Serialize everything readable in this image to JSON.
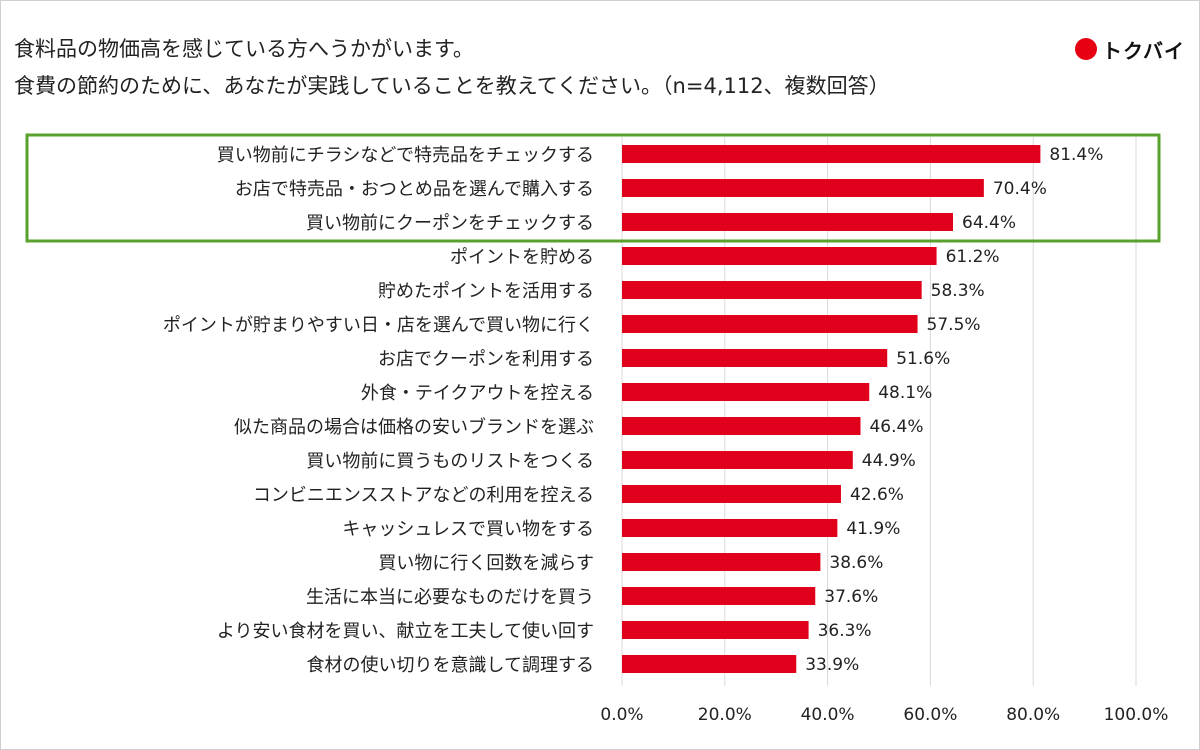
{
  "header": {
    "title_line1": "食料品の物価高を感じている方へうかがいます。",
    "title_line2": "食費の節約のために、あなたが実践していることを教えてください。（n=4,112、複数回答）"
  },
  "brand": {
    "name": "トクバイ",
    "dot_color": "#e60012"
  },
  "colors": {
    "bar": "#e0001b",
    "highlight_border": "#5aa02c",
    "grid": "#d9d9d9"
  },
  "chart_data": {
    "type": "bar",
    "orientation": "horizontal",
    "categories": [
      "買い物前にチラシなどで特売品をチェックする",
      "お店で特売品・おつとめ品を選んで購入する",
      "買い物前にクーポンをチェックする",
      "ポイントを貯める",
      "貯めたポイントを活用する",
      "ポイントが貯まりやすい日・店を選んで買い物に行く",
      "お店でクーポンを利用する",
      "外食・テイクアウトを控える",
      "似た商品の場合は価格の安いブランドを選ぶ",
      "買い物前に買うものリストをつくる",
      "コンビニエンスストアなどの利用を控える",
      "キャッシュレスで買い物をする",
      "買い物に行く回数を減らす",
      "生活に本当に必要なものだけを買う",
      "より安い食材を買い、献立を工夫して使い回す",
      "食材の使い切りを意識して調理する"
    ],
    "values": [
      81.4,
      70.4,
      64.4,
      61.2,
      58.3,
      57.5,
      51.6,
      48.1,
      46.4,
      44.9,
      42.6,
      41.9,
      38.6,
      37.6,
      36.3,
      33.9
    ],
    "value_labels": [
      "81.4%",
      "70.4%",
      "64.4%",
      "61.2%",
      "58.3%",
      "57.5%",
      "51.6%",
      "48.1%",
      "46.4%",
      "44.9%",
      "42.6%",
      "41.9%",
      "38.6%",
      "37.6%",
      "36.3%",
      "33.9%"
    ],
    "xlim": [
      0,
      100
    ],
    "xticks": [
      0,
      20,
      40,
      60,
      80,
      100
    ],
    "xtick_labels": [
      "0.0%",
      "20.0%",
      "40.0%",
      "60.0%",
      "80.0%",
      "100.0%"
    ],
    "grid": true,
    "highlighted_top_count": 3
  }
}
